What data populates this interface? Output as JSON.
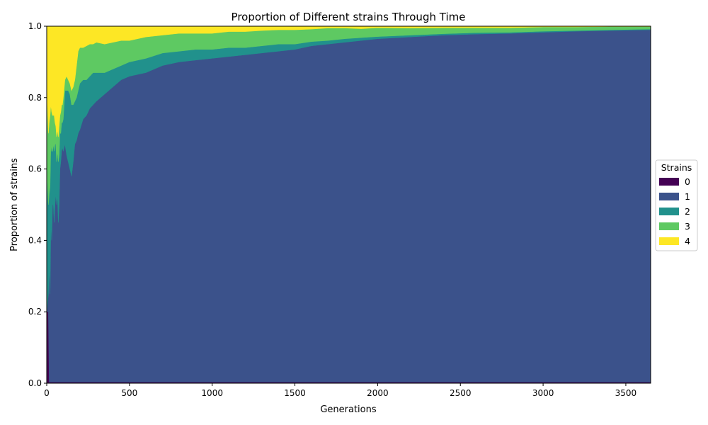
{
  "chart_data": {
    "type": "area",
    "stacked": true,
    "title": "Proportion of Different strains Through Time",
    "xlabel": "Generations",
    "ylabel": "Proportion of strains",
    "xlim": [
      0,
      3650
    ],
    "ylim": [
      0,
      1
    ],
    "xticks": [
      0,
      500,
      1000,
      1500,
      2000,
      2500,
      3000,
      3500
    ],
    "xtick_labels": [
      "0",
      "500",
      "1000",
      "1500",
      "2000",
      "2500",
      "3000",
      "3500"
    ],
    "yticks": [
      0,
      0.2,
      0.4,
      0.6,
      0.8,
      1.0
    ],
    "ytick_labels": [
      "0.0",
      "0.2",
      "0.4",
      "0.6",
      "0.8",
      "1.0"
    ],
    "grid": false,
    "legend": {
      "title": "Strains",
      "placement": "center-right outside"
    },
    "x": [
      0,
      10,
      15,
      20,
      25,
      30,
      35,
      40,
      45,
      50,
      55,
      60,
      65,
      70,
      75,
      80,
      85,
      90,
      95,
      100,
      110,
      120,
      130,
      140,
      150,
      160,
      170,
      180,
      190,
      200,
      220,
      240,
      260,
      280,
      300,
      350,
      400,
      450,
      500,
      600,
      700,
      800,
      900,
      1000,
      1100,
      1200,
      1300,
      1400,
      1500,
      1600,
      1700,
      1800,
      1900,
      2000,
      2200,
      2400,
      2600,
      2800,
      3000,
      3200,
      3400,
      3650
    ],
    "series": [
      {
        "name": "0",
        "color": "#440154",
        "values": [
          0.2,
          0.2,
          0.0,
          0,
          0,
          0,
          0,
          0,
          0,
          0,
          0,
          0,
          0,
          0,
          0,
          0,
          0,
          0,
          0,
          0,
          0,
          0,
          0,
          0,
          0,
          0,
          0,
          0,
          0,
          0,
          0,
          0,
          0,
          0,
          0,
          0,
          0,
          0,
          0,
          0,
          0,
          0,
          0,
          0,
          0,
          0,
          0,
          0,
          0,
          0,
          0,
          0,
          0,
          0,
          0,
          0,
          0,
          0,
          0,
          0,
          0,
          0
        ]
      },
      {
        "name": "1",
        "color": "#3b528b",
        "values": [
          0.0,
          0.05,
          0.33,
          0.25,
          0.45,
          0.4,
          0.5,
          0.5,
          0.45,
          0.5,
          0.53,
          0.5,
          0.53,
          0.45,
          0.5,
          0.6,
          0.62,
          0.65,
          0.66,
          0.65,
          0.67,
          0.64,
          0.62,
          0.6,
          0.58,
          0.62,
          0.67,
          0.68,
          0.7,
          0.71,
          0.74,
          0.75,
          0.77,
          0.78,
          0.79,
          0.81,
          0.83,
          0.85,
          0.86,
          0.87,
          0.89,
          0.9,
          0.905,
          0.91,
          0.915,
          0.92,
          0.925,
          0.93,
          0.935,
          0.945,
          0.95,
          0.955,
          0.96,
          0.965,
          0.97,
          0.975,
          0.978,
          0.98,
          0.983,
          0.986,
          0.988,
          0.99
        ]
      },
      {
        "name": "2",
        "color": "#21918c",
        "values": [
          0.4,
          0.25,
          0.2,
          0.3,
          0.22,
          0.25,
          0.15,
          0.17,
          0.2,
          0.17,
          0.14,
          0.12,
          0.12,
          0.17,
          0.14,
          0.1,
          0.08,
          0.08,
          0.07,
          0.09,
          0.15,
          0.18,
          0.2,
          0.21,
          0.2,
          0.16,
          0.12,
          0.12,
          0.12,
          0.13,
          0.11,
          0.1,
          0.09,
          0.09,
          0.08,
          0.06,
          0.05,
          0.04,
          0.04,
          0.04,
          0.035,
          0.03,
          0.03,
          0.025,
          0.025,
          0.02,
          0.02,
          0.02,
          0.015,
          0.012,
          0.01,
          0.01,
          0.008,
          0.006,
          0.005,
          0.004,
          0.004,
          0.003,
          0.003,
          0.002,
          0.002,
          0.002
        ]
      },
      {
        "name": "3",
        "color": "#5ec962",
        "values": [
          0.23,
          0.2,
          0.2,
          0.2,
          0.11,
          0.11,
          0.1,
          0.08,
          0.1,
          0.06,
          0.05,
          0.07,
          0.06,
          0.07,
          0.08,
          0.05,
          0.06,
          0.05,
          0.05,
          0.06,
          0.03,
          0.04,
          0.03,
          0.03,
          0.04,
          0.05,
          0.06,
          0.09,
          0.11,
          0.1,
          0.09,
          0.095,
          0.09,
          0.08,
          0.085,
          0.08,
          0.075,
          0.07,
          0.06,
          0.06,
          0.05,
          0.05,
          0.045,
          0.045,
          0.045,
          0.045,
          0.043,
          0.04,
          0.04,
          0.035,
          0.035,
          0.03,
          0.025,
          0.025,
          0.02,
          0.017,
          0.014,
          0.013,
          0.012,
          0.01,
          0.009,
          0.007
        ]
      },
      {
        "name": "4",
        "color": "#fde725",
        "values": [
          0.17,
          0.3,
          0.27,
          0.25,
          0.22,
          0.24,
          0.25,
          0.25,
          0.25,
          0.27,
          0.28,
          0.31,
          0.29,
          0.31,
          0.28,
          0.25,
          0.24,
          0.22,
          0.22,
          0.2,
          0.15,
          0.14,
          0.15,
          0.16,
          0.18,
          0.17,
          0.15,
          0.11,
          0.07,
          0.06,
          0.06,
          0.055,
          0.05,
          0.05,
          0.045,
          0.05,
          0.045,
          0.04,
          0.04,
          0.03,
          0.025,
          0.02,
          0.02,
          0.02,
          0.015,
          0.015,
          0.012,
          0.01,
          0.01,
          0.008,
          0.005,
          0.005,
          0.007,
          0.004,
          0.005,
          0.004,
          0.004,
          0.004,
          0.002,
          0.002,
          0.001,
          0.001
        ]
      }
    ]
  }
}
